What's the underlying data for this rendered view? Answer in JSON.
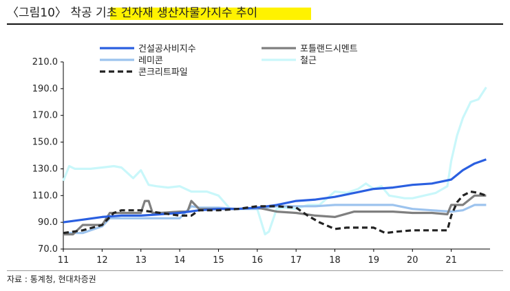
{
  "header": {
    "title": "〈그림10〉 착공 기초 건자재 생산자물가지수 추이"
  },
  "footer": {
    "source": "자료 : 통계청, 현대차증권"
  },
  "chart_data": {
    "type": "line",
    "title": "",
    "xlabel": "",
    "ylabel": "",
    "ylim": [
      70,
      210
    ],
    "xlim": [
      11,
      22
    ],
    "y_ticks": [
      "210.0",
      "190.0",
      "170.0",
      "150.0",
      "130.0",
      "110.0",
      "90.0",
      "70.0"
    ],
    "y_tick_values": [
      210,
      190,
      170,
      150,
      130,
      110,
      90,
      70
    ],
    "x_ticks": [
      "11",
      "12",
      "13",
      "14",
      "15",
      "16",
      "17",
      "18",
      "19",
      "20",
      "21"
    ],
    "x_tick_values": [
      11,
      12,
      13,
      14,
      15,
      16,
      17,
      18,
      19,
      20,
      21
    ],
    "legend_position": "top",
    "grid": false,
    "series": [
      {
        "name": "건설공사비지수",
        "color": "#2a5fe0",
        "dash": "solid",
        "x": [
          11.0,
          11.5,
          12.0,
          12.5,
          13.0,
          13.5,
          14.0,
          14.5,
          15.0,
          15.5,
          16.0,
          16.5,
          17.0,
          17.5,
          18.0,
          18.5,
          19.0,
          19.5,
          20.0,
          20.5,
          21.0,
          21.3,
          21.6,
          21.9
        ],
        "y": [
          90,
          92,
          94,
          95,
          95,
          96,
          97,
          99,
          100,
          100,
          101,
          103,
          106,
          107,
          109,
          112,
          115,
          116,
          118,
          119,
          122,
          129,
          134,
          137
        ]
      },
      {
        "name": "포틀랜드시멘트",
        "color": "#7f7f7f",
        "dash": "solid",
        "x": [
          11.0,
          11.25,
          11.5,
          12.0,
          12.2,
          12.5,
          13.0,
          13.1,
          13.2,
          13.3,
          13.5,
          14.0,
          14.2,
          14.3,
          14.4,
          14.5,
          15.0,
          15.5,
          16.0,
          16.5,
          17.0,
          17.5,
          18.0,
          18.5,
          19.0,
          19.5,
          20.0,
          20.5,
          20.9,
          21.0,
          21.3,
          21.6,
          21.9
        ],
        "y": [
          81,
          81,
          88,
          88,
          97,
          97,
          97,
          106,
          106,
          97,
          97,
          98,
          98,
          106,
          103,
          100,
          100,
          100,
          101,
          98,
          97,
          95,
          94,
          98,
          98,
          98,
          97,
          97,
          96,
          103,
          103,
          110,
          110
        ]
      },
      {
        "name": "레미콘",
        "color": "#9cc3ee",
        "dash": "solid",
        "x": [
          11.0,
          11.5,
          12.0,
          12.2,
          12.5,
          13.0,
          13.5,
          14.0,
          14.3,
          14.5,
          15.0,
          15.5,
          16.0,
          16.5,
          17.0,
          17.5,
          18.0,
          18.5,
          19.0,
          19.5,
          20.0,
          20.5,
          21.0,
          21.3,
          21.6,
          21.9
        ],
        "y": [
          82,
          82,
          87,
          93,
          93,
          93,
          93,
          93,
          102,
          101,
          101,
          100,
          100,
          102,
          102,
          102,
          103,
          103,
          103,
          103,
          100,
          99,
          98,
          99,
          103,
          103
        ]
      },
      {
        "name": "철근",
        "color": "#c9f7fa",
        "dash": "solid",
        "x": [
          11.0,
          11.15,
          11.3,
          11.7,
          12.0,
          12.3,
          12.5,
          12.8,
          13.0,
          13.2,
          13.4,
          13.7,
          14.0,
          14.3,
          14.7,
          15.0,
          15.3,
          15.6,
          16.0,
          16.2,
          16.3,
          16.5,
          16.7,
          17.0,
          17.3,
          17.6,
          18.0,
          18.3,
          18.6,
          18.8,
          19.0,
          19.2,
          19.4,
          19.6,
          19.8,
          20.0,
          20.3,
          20.6,
          20.9,
          21.0,
          21.15,
          21.3,
          21.5,
          21.7,
          21.9
        ],
        "y": [
          121,
          132,
          130,
          130,
          131,
          132,
          131,
          123,
          129,
          118,
          117,
          116,
          117,
          113,
          113,
          110,
          100,
          100,
          100,
          81,
          83,
          100,
          101,
          100,
          103,
          103,
          113,
          112,
          115,
          119,
          115,
          117,
          110,
          109,
          108,
          108,
          110,
          112,
          117,
          136,
          155,
          168,
          180,
          182,
          191
        ]
      },
      {
        "name": "콘크리트파일",
        "color": "#222222",
        "dash": "dashed",
        "x": [
          11.0,
          11.5,
          12.0,
          12.3,
          12.5,
          13.0,
          13.5,
          14.0,
          14.3,
          14.5,
          15.0,
          15.5,
          16.0,
          16.3,
          16.5,
          17.0,
          17.3,
          17.6,
          18.0,
          18.3,
          18.6,
          19.0,
          19.3,
          19.6,
          20.0,
          20.3,
          20.6,
          20.9,
          21.0,
          21.15,
          21.3,
          21.5,
          21.7,
          21.9
        ],
        "y": [
          82,
          84,
          88,
          97,
          99,
          99,
          97,
          95,
          95,
          99,
          99,
          100,
          102,
          102,
          102,
          101,
          95,
          90,
          85,
          86,
          86,
          86,
          82,
          83,
          84,
          84,
          84,
          84,
          95,
          105,
          110,
          113,
          112,
          110
        ]
      }
    ]
  }
}
